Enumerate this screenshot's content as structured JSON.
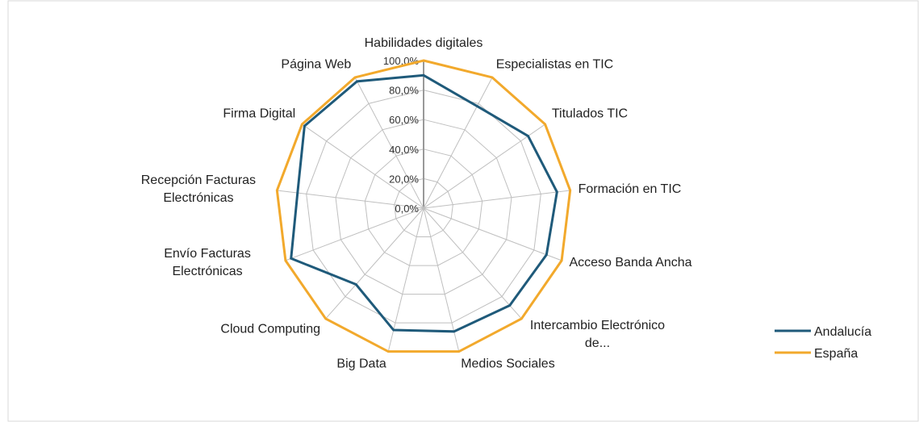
{
  "chart_data": {
    "type": "radar",
    "categories": [
      "Habilidades digitales",
      "Especialistas en TIC",
      "Titulados TIC",
      "Formación en TIC",
      "Acceso Banda Ancha",
      "Intercambio Electrónico de...",
      "Medios Sociales",
      "Big Data",
      "Cloud Computing",
      "Envío Facturas Electrónicas",
      "Recepción Facturas Electrónicas",
      "Firma Digital",
      "Página Web"
    ],
    "series": [
      {
        "name": "Andalucía",
        "color": "#1f5a7a",
        "values": [
          90,
          78,
          86,
          91,
          89,
          88,
          86,
          85,
          69,
          96,
          86,
          98,
          97
        ]
      },
      {
        "name": "España",
        "color": "#f2a92c",
        "values": [
          100,
          100,
          100,
          100,
          100,
          100,
          100,
          100,
          100,
          100,
          100,
          100,
          100
        ]
      }
    ],
    "ylim": [
      0,
      100
    ],
    "yticks": [
      {
        "value": 0,
        "label": "0,0%"
      },
      {
        "value": 20,
        "label": "20,0%"
      },
      {
        "value": 40,
        "label": "40,0%"
      },
      {
        "value": 60,
        "label": "60,0%"
      },
      {
        "value": 80,
        "label": "80,0%"
      },
      {
        "value": 100,
        "label": "100,0%"
      }
    ],
    "grid": true,
    "legend": "right"
  }
}
